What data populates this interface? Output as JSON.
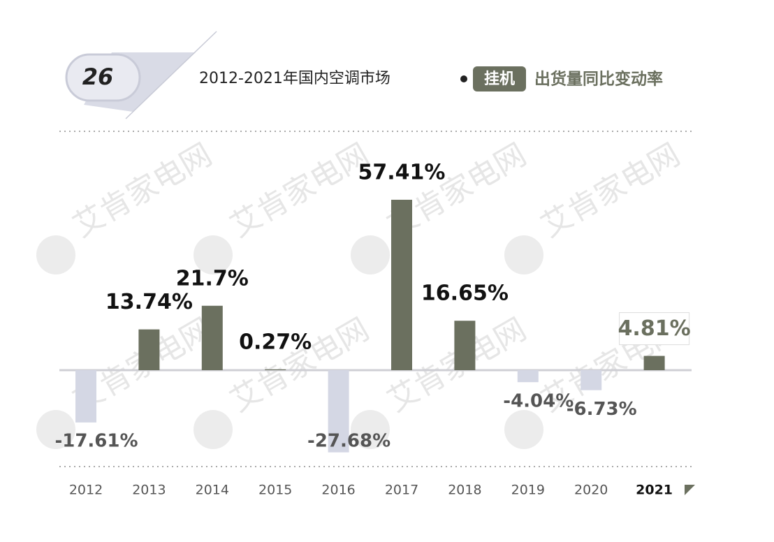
{
  "badge": "26",
  "chart_data": {
    "type": "bar",
    "title": "2012-2021年国内空调市场",
    "tag": "挂机",
    "subtitle": "出货量同比变动率",
    "watermark": "艾肯家电网",
    "categories": [
      "2012",
      "2013",
      "2014",
      "2015",
      "2016",
      "2017",
      "2018",
      "2019",
      "2020",
      "2021"
    ],
    "values": [
      -17.61,
      13.74,
      21.7,
      0.27,
      -27.68,
      57.41,
      16.65,
      -4.04,
      -6.73,
      4.81
    ],
    "value_labels": [
      "-17.61%",
      "13.74%",
      "21.7%",
      "0.27%",
      "-27.68%",
      "57.41%",
      "16.65%",
      "-4.04%",
      "-6.73%",
      "4.81%"
    ],
    "positive_color": "#6b705f",
    "negative_color": "#d4d7e4"
  }
}
